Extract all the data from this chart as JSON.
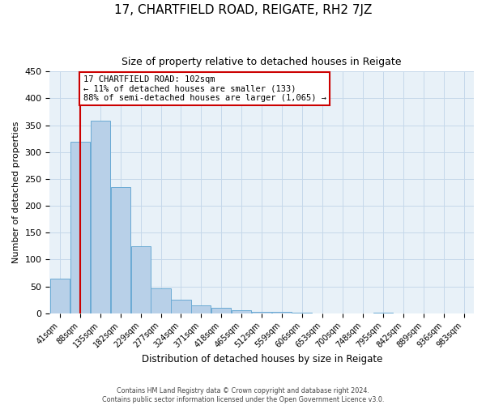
{
  "title": "17, CHARTFIELD ROAD, REIGATE, RH2 7JZ",
  "subtitle": "Size of property relative to detached houses in Reigate",
  "xlabel": "Distribution of detached houses by size in Reigate",
  "ylabel": "Number of detached properties",
  "bar_labels": [
    "41sqm",
    "88sqm",
    "135sqm",
    "182sqm",
    "229sqm",
    "277sqm",
    "324sqm",
    "371sqm",
    "418sqm",
    "465sqm",
    "512sqm",
    "559sqm",
    "606sqm",
    "653sqm",
    "700sqm",
    "748sqm",
    "795sqm",
    "842sqm",
    "889sqm",
    "936sqm",
    "983sqm"
  ],
  "bar_values": [
    65,
    320,
    358,
    235,
    125,
    47,
    25,
    15,
    10,
    5,
    3,
    2,
    1,
    0,
    0,
    0,
    1,
    0,
    0,
    0,
    0
  ],
  "bar_color": "#b8d0e8",
  "bar_edge_color": "#6aaad4",
  "grid_color": "#c5d8ea",
  "bg_color": "#e8f1f8",
  "vline_color": "#cc0000",
  "annotation_text": "17 CHARTFIELD ROAD: 102sqm\n← 11% of detached houses are smaller (133)\n88% of semi-detached houses are larger (1,065) →",
  "annotation_box_color": "#ffffff",
  "annotation_box_edge": "#cc0000",
  "ylim": [
    0,
    450
  ],
  "yticks": [
    0,
    50,
    100,
    150,
    200,
    250,
    300,
    350,
    400,
    450
  ],
  "footer_line1": "Contains HM Land Registry data © Crown copyright and database right 2024.",
  "footer_line2": "Contains public sector information licensed under the Open Government Licence v3.0."
}
